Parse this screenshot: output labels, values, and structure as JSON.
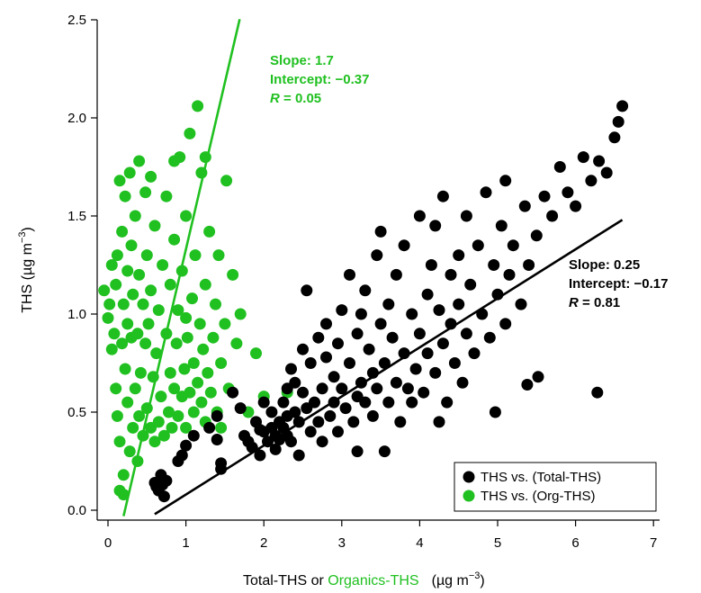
{
  "chart_data": {
    "type": "scatter",
    "xlabel": {
      "pre": "Total-THS or ",
      "green": "Organics-THS",
      "unit": "(µg m",
      "unit_sup": "−3",
      "unit_close": ")"
    },
    "ylabel": {
      "pre": "THS (µg m",
      "sup": "−3",
      "close": ")"
    },
    "xlim": [
      -0.1,
      7.0
    ],
    "ylim": [
      -0.05,
      2.5
    ],
    "x_ticks": [
      "0",
      "1",
      "2",
      "3",
      "4",
      "5",
      "6",
      "7"
    ],
    "y_ticks": [
      "0.0",
      "0.5",
      "1.0",
      "1.5",
      "2.0",
      "2.5"
    ],
    "grid": false,
    "legend_position": "bottom-right",
    "colors": {
      "total": "#000000",
      "org": "#20c020"
    },
    "series": [
      {
        "name": "THS vs. (Total-THS)",
        "color": "#000000",
        "fit": {
          "x_start": 0.6,
          "x_end": 6.6,
          "slope_label": "Slope: 0.25",
          "intercept_label": "Intercept: −0.17",
          "r_prefix": "R",
          "r_value": " = 0.81"
        },
        "points": [
          [
            0.6,
            0.14
          ],
          [
            0.65,
            0.1
          ],
          [
            0.7,
            0.13
          ],
          [
            0.72,
            0.07
          ],
          [
            0.68,
            0.18
          ],
          [
            0.75,
            0.15
          ],
          [
            0.62,
            0.12
          ],
          [
            0.9,
            0.25
          ],
          [
            0.95,
            0.28
          ],
          [
            1.0,
            0.33
          ],
          [
            1.1,
            0.38
          ],
          [
            1.3,
            0.42
          ],
          [
            1.4,
            0.36
          ],
          [
            1.4,
            0.48
          ],
          [
            1.45,
            0.21
          ],
          [
            1.45,
            0.24
          ],
          [
            1.6,
            0.6
          ],
          [
            1.7,
            0.52
          ],
          [
            1.75,
            0.38
          ],
          [
            1.8,
            0.35
          ],
          [
            1.85,
            0.32
          ],
          [
            1.9,
            0.45
          ],
          [
            1.95,
            0.41
          ],
          [
            1.95,
            0.28
          ],
          [
            2.0,
            0.55
          ],
          [
            2.0,
            0.4
          ],
          [
            2.05,
            0.35
          ],
          [
            2.1,
            0.5
          ],
          [
            2.1,
            0.42
          ],
          [
            2.15,
            0.38
          ],
          [
            2.15,
            0.31
          ],
          [
            2.2,
            0.45
          ],
          [
            2.2,
            0.36
          ],
          [
            2.25,
            0.42
          ],
          [
            2.25,
            0.55
          ],
          [
            2.3,
            0.48
          ],
          [
            2.3,
            0.62
          ],
          [
            2.3,
            0.38
          ],
          [
            2.35,
            0.35
          ],
          [
            2.35,
            0.72
          ],
          [
            2.4,
            0.5
          ],
          [
            2.4,
            0.65
          ],
          [
            2.45,
            0.45
          ],
          [
            2.45,
            0.28
          ],
          [
            2.5,
            0.82
          ],
          [
            2.5,
            0.6
          ],
          [
            2.55,
            0.52
          ],
          [
            2.55,
            1.12
          ],
          [
            2.6,
            0.4
          ],
          [
            2.6,
            0.75
          ],
          [
            2.65,
            0.55
          ],
          [
            2.7,
            0.88
          ],
          [
            2.7,
            0.45
          ],
          [
            2.75,
            0.62
          ],
          [
            2.75,
            0.35
          ],
          [
            2.8,
            0.95
          ],
          [
            2.8,
            0.78
          ],
          [
            2.85,
            0.48
          ],
          [
            2.9,
            0.55
          ],
          [
            2.9,
            0.68
          ],
          [
            2.95,
            0.4
          ],
          [
            2.95,
            0.85
          ],
          [
            3.0,
            1.02
          ],
          [
            3.0,
            0.62
          ],
          [
            3.05,
            0.52
          ],
          [
            3.1,
            0.75
          ],
          [
            3.1,
            1.2
          ],
          [
            3.15,
            0.45
          ],
          [
            3.2,
            0.58
          ],
          [
            3.2,
            0.9
          ],
          [
            3.25,
            1.0
          ],
          [
            3.25,
            0.65
          ],
          [
            3.3,
            0.55
          ],
          [
            3.3,
            1.12
          ],
          [
            3.35,
            0.82
          ],
          [
            3.4,
            0.48
          ],
          [
            3.4,
            0.7
          ],
          [
            3.45,
            1.3
          ],
          [
            3.45,
            0.62
          ],
          [
            3.5,
            0.95
          ],
          [
            3.5,
            1.42
          ],
          [
            3.55,
            0.75
          ],
          [
            3.55,
            0.3
          ],
          [
            3.6,
            0.55
          ],
          [
            3.6,
            1.05
          ],
          [
            3.65,
            0.88
          ],
          [
            3.7,
            0.65
          ],
          [
            3.7,
            1.2
          ],
          [
            3.75,
            0.45
          ],
          [
            3.8,
            0.8
          ],
          [
            3.8,
            1.35
          ],
          [
            3.85,
            0.62
          ],
          [
            3.9,
            1.0
          ],
          [
            3.9,
            0.55
          ],
          [
            3.95,
            0.72
          ],
          [
            4.0,
            1.5
          ],
          [
            4.0,
            0.9
          ],
          [
            4.05,
            0.6
          ],
          [
            4.1,
            1.1
          ],
          [
            4.1,
            0.8
          ],
          [
            4.15,
            1.25
          ],
          [
            4.2,
            0.7
          ],
          [
            4.2,
            1.45
          ],
          [
            4.25,
            1.02
          ],
          [
            4.3,
            0.85
          ],
          [
            4.3,
            1.6
          ],
          [
            4.35,
            0.55
          ],
          [
            4.4,
            1.2
          ],
          [
            4.4,
            0.95
          ],
          [
            4.45,
            0.75
          ],
          [
            4.5,
            1.3
          ],
          [
            4.5,
            1.05
          ],
          [
            4.55,
            0.65
          ],
          [
            4.6,
            1.5
          ],
          [
            4.6,
            0.9
          ],
          [
            4.65,
            1.15
          ],
          [
            4.7,
            0.8
          ],
          [
            4.75,
            1.35
          ],
          [
            4.8,
            1.0
          ],
          [
            4.85,
            1.62
          ],
          [
            4.9,
            0.88
          ],
          [
            4.95,
            1.25
          ],
          [
            5.0,
            1.1
          ],
          [
            5.05,
            1.45
          ],
          [
            5.1,
            0.95
          ],
          [
            5.1,
            1.68
          ],
          [
            5.15,
            1.2
          ],
          [
            5.2,
            1.35
          ],
          [
            5.3,
            1.05
          ],
          [
            5.35,
            1.55
          ],
          [
            5.4,
            1.25
          ],
          [
            5.5,
            1.4
          ],
          [
            5.6,
            1.6
          ],
          [
            5.7,
            1.5
          ],
          [
            5.8,
            1.75
          ],
          [
            5.9,
            1.62
          ],
          [
            6.0,
            1.55
          ],
          [
            6.1,
            1.8
          ],
          [
            6.2,
            1.68
          ],
          [
            6.3,
            1.78
          ],
          [
            6.4,
            1.72
          ],
          [
            6.5,
            1.9
          ],
          [
            6.55,
            1.98
          ],
          [
            6.6,
            2.06
          ],
          [
            4.97,
            0.5
          ],
          [
            5.38,
            0.64
          ],
          [
            5.52,
            0.68
          ],
          [
            6.28,
            0.6
          ],
          [
            4.25,
            0.45
          ],
          [
            3.2,
            0.3
          ]
        ]
      },
      {
        "name": "THS vs. (Org-THS)",
        "color": "#20c020",
        "fit": {
          "x_start": 0.2,
          "x_end": 1.69,
          "slope_label": "Slope: 1.7",
          "intercept_label": "Intercept: −0.37",
          "r_prefix": "R",
          "r_value": " = 0.05"
        },
        "points": [
          [
            -0.05,
            1.12
          ],
          [
            0.0,
            0.98
          ],
          [
            0.02,
            1.05
          ],
          [
            0.05,
            0.82
          ],
          [
            0.05,
            1.25
          ],
          [
            0.08,
            0.9
          ],
          [
            0.1,
            1.15
          ],
          [
            0.1,
            0.62
          ],
          [
            0.12,
            1.3
          ],
          [
            0.12,
            0.48
          ],
          [
            0.15,
            0.35
          ],
          [
            0.15,
            1.68
          ],
          [
            0.15,
            0.1
          ],
          [
            0.18,
            0.85
          ],
          [
            0.18,
            1.42
          ],
          [
            0.2,
            1.05
          ],
          [
            0.2,
            0.18
          ],
          [
            0.2,
            0.08
          ],
          [
            0.22,
            1.6
          ],
          [
            0.22,
            0.72
          ],
          [
            0.25,
            1.22
          ],
          [
            0.25,
            0.95
          ],
          [
            0.25,
            0.55
          ],
          [
            0.28,
            0.3
          ],
          [
            0.28,
            1.72
          ],
          [
            0.3,
            0.88
          ],
          [
            0.3,
            1.35
          ],
          [
            0.32,
            0.42
          ],
          [
            0.32,
            1.1
          ],
          [
            0.35,
            0.62
          ],
          [
            0.35,
            1.5
          ],
          [
            0.38,
            0.25
          ],
          [
            0.38,
            0.9
          ],
          [
            0.4,
            1.78
          ],
          [
            0.4,
            0.48
          ],
          [
            0.4,
            1.2
          ],
          [
            0.42,
            0.7
          ],
          [
            0.45,
            1.05
          ],
          [
            0.45,
            0.38
          ],
          [
            0.48,
            1.62
          ],
          [
            0.48,
            0.85
          ],
          [
            0.5,
            0.52
          ],
          [
            0.5,
            1.3
          ],
          [
            0.52,
            0.95
          ],
          [
            0.55,
            0.42
          ],
          [
            0.55,
            1.12
          ],
          [
            0.58,
            0.68
          ],
          [
            0.6,
            1.45
          ],
          [
            0.6,
            0.35
          ],
          [
            0.62,
            0.8
          ],
          [
            0.65,
            1.02
          ],
          [
            0.65,
            0.45
          ],
          [
            0.68,
            0.58
          ],
          [
            0.7,
            1.25
          ],
          [
            0.72,
            0.38
          ],
          [
            0.75,
            0.9
          ],
          [
            0.75,
            1.6
          ],
          [
            0.78,
            0.5
          ],
          [
            0.8,
            0.7
          ],
          [
            0.8,
            1.15
          ],
          [
            0.82,
            0.42
          ],
          [
            0.85,
            0.62
          ],
          [
            0.85,
            1.38
          ],
          [
            0.88,
            0.85
          ],
          [
            0.9,
            0.48
          ],
          [
            0.9,
            1.02
          ],
          [
            0.92,
            1.8
          ],
          [
            0.95,
            0.58
          ],
          [
            0.95,
            1.22
          ],
          [
            0.98,
            0.72
          ],
          [
            1.0,
            0.42
          ],
          [
            1.0,
            1.5
          ],
          [
            1.02,
            0.88
          ],
          [
            1.05,
            0.6
          ],
          [
            1.05,
            1.92
          ],
          [
            1.08,
            1.08
          ],
          [
            1.1,
            0.5
          ],
          [
            1.1,
            0.75
          ],
          [
            1.12,
            1.3
          ],
          [
            1.15,
            0.65
          ],
          [
            1.15,
            2.06
          ],
          [
            1.18,
            0.95
          ],
          [
            1.2,
            0.55
          ],
          [
            1.2,
            1.72
          ],
          [
            1.22,
            0.82
          ],
          [
            1.25,
            1.15
          ],
          [
            1.25,
            0.45
          ],
          [
            1.28,
            0.7
          ],
          [
            1.3,
            1.42
          ],
          [
            1.32,
            0.6
          ],
          [
            1.35,
            0.88
          ],
          [
            1.38,
            1.05
          ],
          [
            1.4,
            0.5
          ],
          [
            1.42,
            1.3
          ],
          [
            1.45,
            0.75
          ],
          [
            1.5,
            0.95
          ],
          [
            1.52,
            1.68
          ],
          [
            1.55,
            0.62
          ],
          [
            1.6,
            1.2
          ],
          [
            1.65,
            0.85
          ],
          [
            1.7,
            1.0
          ],
          [
            1.8,
            0.5
          ],
          [
            1.9,
            0.8
          ],
          [
            2.0,
            0.58
          ],
          [
            2.3,
            0.6
          ],
          [
            1.25,
            1.8
          ],
          [
            0.55,
            1.7
          ],
          [
            0.85,
            1.78
          ],
          [
            1.45,
            0.42
          ],
          [
            1.0,
            0.98
          ]
        ]
      }
    ]
  }
}
